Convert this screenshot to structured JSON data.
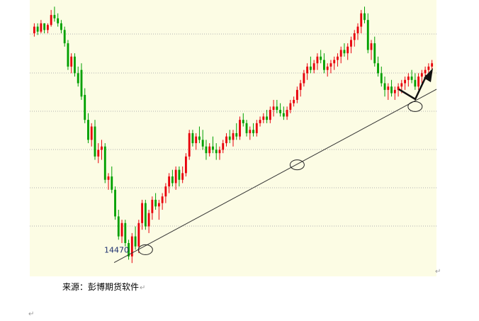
{
  "chart_data": {
    "type": "candlestick",
    "title": "",
    "xlabel": "",
    "ylabel": "",
    "grid": true,
    "colors": {
      "background": "#fcfce4",
      "up": "#e8000b",
      "down": "#00a000",
      "grid": "#b0b0b0",
      "trendline": "#333333",
      "arrow": "#111111"
    },
    "ylim": [
      14390,
      15220
    ],
    "annotations": [
      {
        "text": "14470",
        "value": 14470
      }
    ],
    "touch_points": [
      {
        "index": 33,
        "value": 14470
      },
      {
        "index": 78,
        "value": 14725
      },
      {
        "index": 113,
        "value": 14900
      }
    ],
    "trendline": {
      "start": {
        "index": 30,
        "value": 14440
      },
      "end": {
        "index": 132,
        "value": 15040
      }
    },
    "arrow_hint": "up",
    "candles": [
      [
        15120,
        15150,
        15110,
        15140
      ],
      [
        15140,
        15150,
        15115,
        15125
      ],
      [
        15125,
        15160,
        15120,
        15150
      ],
      [
        15150,
        15150,
        15120,
        15130
      ],
      [
        15130,
        15150,
        15120,
        15145
      ],
      [
        15145,
        15190,
        15140,
        15175
      ],
      [
        15175,
        15200,
        15155,
        15165
      ],
      [
        15165,
        15180,
        15140,
        15150
      ],
      [
        15150,
        15160,
        15120,
        15130
      ],
      [
        15130,
        15140,
        15080,
        15090
      ],
      [
        15090,
        15100,
        15010,
        15020
      ],
      [
        15020,
        15060,
        15000,
        15050
      ],
      [
        15050,
        15060,
        14990,
        15000
      ],
      [
        15000,
        15020,
        14960,
        14970
      ],
      [
        15010,
        15030,
        14920,
        14930
      ],
      [
        14935,
        14955,
        14850,
        14860
      ],
      [
        14860,
        14880,
        14790,
        14800
      ],
      [
        14800,
        14850,
        14780,
        14840
      ],
      [
        14840,
        14860,
        14740,
        14750
      ],
      [
        14750,
        14790,
        14730,
        14770
      ],
      [
        14770,
        14800,
        14740,
        14780
      ],
      [
        14780,
        14790,
        14670,
        14680
      ],
      [
        14680,
        14700,
        14650,
        14690
      ],
      [
        14690,
        14720,
        14640,
        14650
      ],
      [
        14650,
        14660,
        14560,
        14570
      ],
      [
        14570,
        14590,
        14500,
        14510
      ],
      [
        14510,
        14560,
        14490,
        14550
      ],
      [
        14550,
        14560,
        14480,
        14490
      ],
      [
        14490,
        14500,
        14440,
        14450
      ],
      [
        14450,
        14520,
        14430,
        14510
      ],
      [
        14510,
        14540,
        14470,
        14480
      ],
      [
        14480,
        14560,
        14460,
        14550
      ],
      [
        14550,
        14620,
        14530,
        14610
      ],
      [
        14610,
        14620,
        14530,
        14540
      ],
      [
        14540,
        14590,
        14520,
        14580
      ],
      [
        14580,
        14630,
        14560,
        14620
      ],
      [
        14620,
        14640,
        14590,
        14600
      ],
      [
        14600,
        14620,
        14560,
        14610
      ],
      [
        14610,
        14640,
        14590,
        14630
      ],
      [
        14630,
        14670,
        14610,
        14660
      ],
      [
        14660,
        14700,
        14640,
        14690
      ],
      [
        14690,
        14710,
        14660,
        14670
      ],
      [
        14670,
        14720,
        14650,
        14710
      ],
      [
        14710,
        14720,
        14660,
        14680
      ],
      [
        14680,
        14720,
        14670,
        14700
      ],
      [
        14700,
        14760,
        14690,
        14750
      ],
      [
        14750,
        14830,
        14740,
        14820
      ],
      [
        14820,
        14830,
        14780,
        14790
      ],
      [
        14790,
        14820,
        14770,
        14810
      ],
      [
        14810,
        14840,
        14790,
        14800
      ],
      [
        14800,
        14830,
        14770,
        14780
      ],
      [
        14780,
        14800,
        14740,
        14760
      ],
      [
        14760,
        14790,
        14750,
        14780
      ],
      [
        14780,
        14810,
        14760,
        14770
      ],
      [
        14770,
        14790,
        14740,
        14760
      ],
      [
        14760,
        14780,
        14740,
        14770
      ],
      [
        14770,
        14800,
        14760,
        14790
      ],
      [
        14790,
        14820,
        14780,
        14810
      ],
      [
        14810,
        14830,
        14790,
        14800
      ],
      [
        14800,
        14830,
        14780,
        14820
      ],
      [
        14820,
        14850,
        14800,
        14810
      ],
      [
        14810,
        14870,
        14800,
        14860
      ],
      [
        14860,
        14880,
        14840,
        14850
      ],
      [
        14850,
        14860,
        14810,
        14820
      ],
      [
        14820,
        14840,
        14800,
        14830
      ],
      [
        14830,
        14850,
        14810,
        14820
      ],
      [
        14820,
        14860,
        14810,
        14850
      ],
      [
        14850,
        14870,
        14840,
        14860
      ],
      [
        14860,
        14880,
        14850,
        14870
      ],
      [
        14870,
        14890,
        14850,
        14860
      ],
      [
        14860,
        14900,
        14850,
        14890
      ],
      [
        14890,
        14920,
        14870,
        14900
      ],
      [
        14900,
        14920,
        14880,
        14890
      ],
      [
        14890,
        14910,
        14870,
        14880
      ],
      [
        14880,
        14900,
        14860,
        14870
      ],
      [
        14870,
        14900,
        14860,
        14890
      ],
      [
        14890,
        14920,
        14880,
        14910
      ],
      [
        14910,
        14930,
        14900,
        14920
      ],
      [
        14920,
        14960,
        14910,
        14950
      ],
      [
        14950,
        14980,
        14930,
        14970
      ],
      [
        14970,
        15010,
        14960,
        15000
      ],
      [
        15000,
        15030,
        14980,
        15020
      ],
      [
        15020,
        15050,
        15000,
        15010
      ],
      [
        15010,
        15040,
        15000,
        15030
      ],
      [
        15030,
        15060,
        15010,
        15050
      ],
      [
        15050,
        15070,
        15030,
        15040
      ],
      [
        15040,
        15060,
        15000,
        15010
      ],
      [
        15010,
        15030,
        14990,
        15020
      ],
      [
        15020,
        15040,
        15000,
        15030
      ],
      [
        15030,
        15050,
        15010,
        15040
      ],
      [
        15040,
        15060,
        15020,
        15050
      ],
      [
        15050,
        15080,
        15030,
        15070
      ],
      [
        15070,
        15090,
        15050,
        15060
      ],
      [
        15060,
        15090,
        15040,
        15080
      ],
      [
        15080,
        15110,
        15060,
        15100
      ],
      [
        15100,
        15130,
        15080,
        15120
      ],
      [
        15120,
        15150,
        15100,
        15140
      ],
      [
        15140,
        15190,
        15120,
        15180
      ],
      [
        15180,
        15200,
        15150,
        15160
      ],
      [
        15160,
        15180,
        15060,
        15070
      ],
      [
        15070,
        15100,
        15040,
        15090
      ],
      [
        15090,
        15110,
        15020,
        15030
      ],
      [
        15030,
        15050,
        14990,
        15000
      ],
      [
        15000,
        15020,
        14960,
        14970
      ],
      [
        14970,
        14990,
        14930,
        14950
      ],
      [
        14950,
        14970,
        14920,
        14960
      ],
      [
        14960,
        14980,
        14930,
        14940
      ],
      [
        14940,
        14960,
        14920,
        14950
      ],
      [
        14950,
        14970,
        14930,
        14960
      ],
      [
        14960,
        14980,
        14940,
        14970
      ],
      [
        14970,
        14990,
        14950,
        14980
      ],
      [
        14980,
        15000,
        14960,
        14990
      ],
      [
        14990,
        15010,
        14970,
        14980
      ],
      [
        14980,
        15000,
        14950,
        14960
      ],
      [
        14960,
        15000,
        14950,
        14990
      ],
      [
        14990,
        15010,
        14970,
        15000
      ],
      [
        15000,
        15020,
        14980,
        15010
      ],
      [
        15010,
        15030,
        14990,
        15020
      ],
      [
        15020,
        15040,
        15000,
        15030
      ]
    ]
  },
  "caption": {
    "text": "来源：彭博期货软件"
  }
}
